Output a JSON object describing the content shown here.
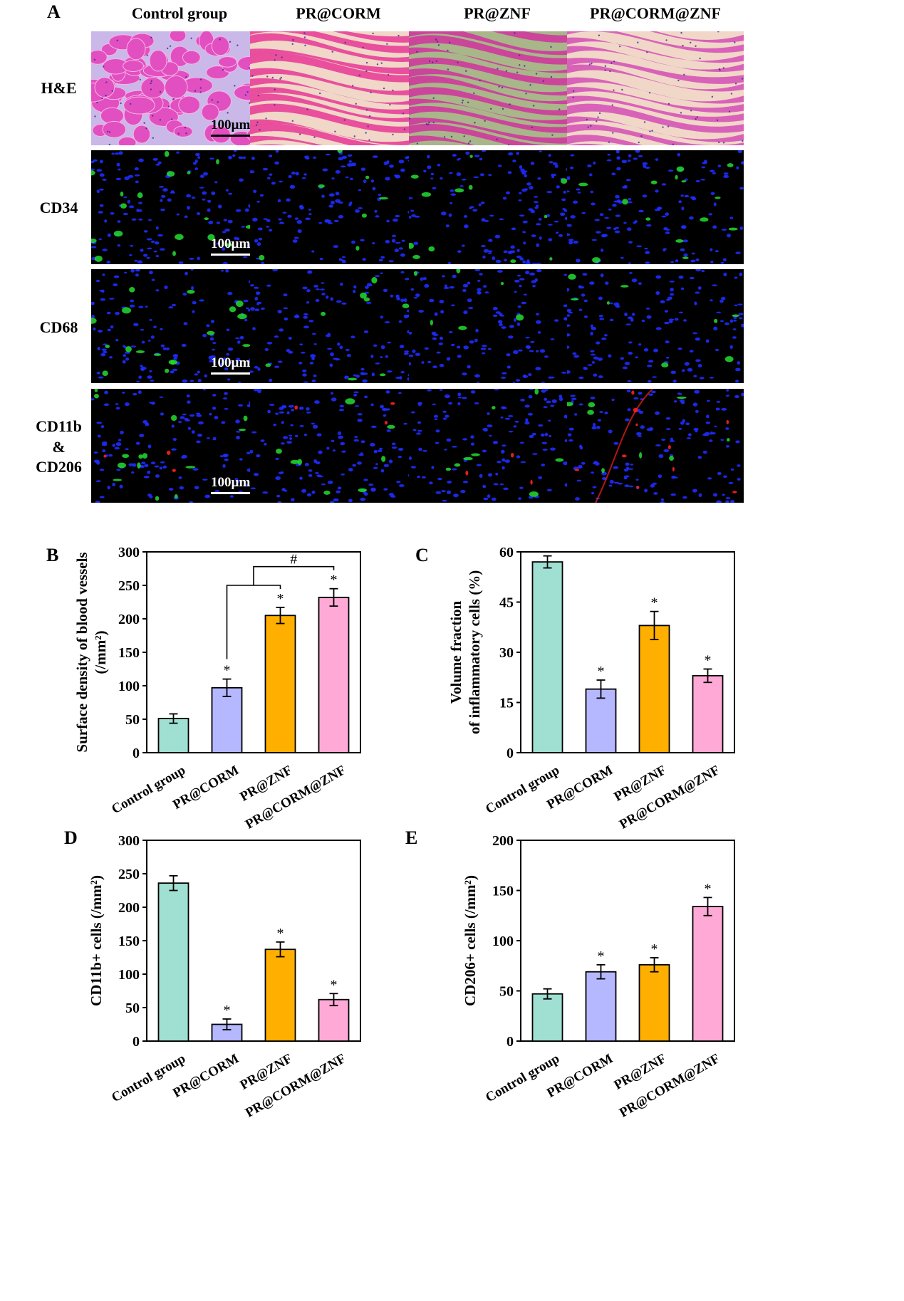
{
  "panel_a": {
    "letter": "A",
    "columns": [
      "Control group",
      "PR@CORM",
      "PR@ZNF",
      "PR@CORM@ZNF"
    ],
    "rows": [
      {
        "label_lines": [
          "H&E"
        ],
        "stain": "he"
      },
      {
        "label_lines": [
          "CD34"
        ],
        "stain": "fluor-green"
      },
      {
        "label_lines": [
          "CD68"
        ],
        "stain": "fluor-green"
      },
      {
        "label_lines": [
          "CD11b",
          "&",
          "CD206"
        ],
        "stain": "fluor-red-green"
      }
    ],
    "scale_bar_text": "100µm",
    "colors": {
      "he_pink": "#d94fb0",
      "he_bg": "#c9b8e8",
      "he_fiber_bg_zf": "#a8b68a",
      "nuclei": "#1e2cff",
      "green": "#22dd33",
      "red": "#ff2020"
    }
  },
  "chart_data": [
    {
      "panel": "B",
      "type": "bar",
      "categories": [
        "Control group",
        "PR@CORM",
        "PR@ZNF",
        "PR@CORM@ZNF"
      ],
      "values": [
        51,
        97,
        205,
        232
      ],
      "errors": [
        7,
        13,
        12,
        13
      ],
      "significance": [
        "",
        "*",
        "*",
        "*"
      ],
      "bracket": {
        "from": 1,
        "to_pair": [
          2,
          3
        ],
        "symbol": "#"
      },
      "ylabel_lines": [
        "Surface density of blood vessels",
        "(/mm²)"
      ],
      "ylim": [
        0,
        300
      ],
      "yticks": [
        0,
        50,
        100,
        150,
        200,
        250,
        300
      ],
      "colors": [
        "#9fe0d2",
        "#b5b8ff",
        "#ffaf00",
        "#ffaad6"
      ]
    },
    {
      "panel": "C",
      "type": "bar",
      "categories": [
        "Control group",
        "PR@CORM",
        "PR@ZNF",
        "PR@CORM@ZNF"
      ],
      "values": [
        57,
        19,
        38,
        23
      ],
      "errors": [
        1.8,
        2.7,
        4.2,
        2.0
      ],
      "significance": [
        "",
        "*",
        "*",
        "*"
      ],
      "ylabel_lines": [
        "Volume fraction",
        "of inflammatory cells (%)"
      ],
      "ylim": [
        0,
        60
      ],
      "yticks": [
        0,
        15,
        30,
        45,
        60
      ],
      "colors": [
        "#9fe0d2",
        "#b5b8ff",
        "#ffaf00",
        "#ffaad6"
      ]
    },
    {
      "panel": "D",
      "type": "bar",
      "categories": [
        "Control group",
        "PR@CORM",
        "PR@ZNF",
        "PR@CORM@ZNF"
      ],
      "values": [
        236,
        25,
        137,
        62
      ],
      "errors": [
        11,
        8,
        11,
        9
      ],
      "significance": [
        "",
        "*",
        "*",
        "*"
      ],
      "ylabel_lines": [
        "CD11b+ cells (/mm²)"
      ],
      "ylim": [
        0,
        300
      ],
      "yticks": [
        0,
        50,
        100,
        150,
        200,
        250,
        300
      ],
      "colors": [
        "#9fe0d2",
        "#b5b8ff",
        "#ffaf00",
        "#ffaad6"
      ]
    },
    {
      "panel": "E",
      "type": "bar",
      "categories": [
        "Control group",
        "PR@CORM",
        "PR@ZNF",
        "PR@CORM@ZNF"
      ],
      "values": [
        47,
        69,
        76,
        134
      ],
      "errors": [
        5,
        7,
        7,
        9
      ],
      "significance": [
        "",
        "*",
        "*",
        "*"
      ],
      "ylabel_lines": [
        "CD206+ cells (/mm²)"
      ],
      "ylim": [
        0,
        200
      ],
      "yticks": [
        0,
        50,
        100,
        150,
        200
      ],
      "colors": [
        "#9fe0d2",
        "#b5b8ff",
        "#ffaf00",
        "#ffaad6"
      ]
    }
  ]
}
